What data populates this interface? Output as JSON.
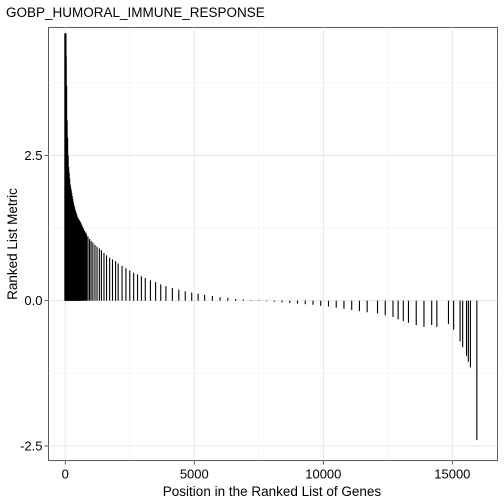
{
  "chart_data": {
    "type": "bar",
    "title": "GOBP_HUMORAL_IMMUNE_RESPONSE",
    "xlabel": "Position in the Ranked List of Genes",
    "ylabel": "Ranked List Metric",
    "xlim": [
      -650,
      16750
    ],
    "ylim": [
      -2.75,
      4.7
    ],
    "x_ticks": [
      0,
      5000,
      10000,
      15000
    ],
    "y_ticks": [
      -2.5,
      0.0,
      2.5
    ],
    "x_tick_labels": [
      "0",
      "5000",
      "10000",
      "15000"
    ],
    "y_tick_labels": [
      "-2.5",
      "0.0",
      "2.5"
    ],
    "grid": true,
    "legend": "none",
    "bars": [
      {
        "x": 5,
        "y": 4.6
      },
      {
        "x": 15,
        "y": 4.2
      },
      {
        "x": 30,
        "y": 3.7
      },
      {
        "x": 50,
        "y": 3.1
      },
      {
        "x": 70,
        "y": 2.8
      },
      {
        "x": 90,
        "y": 2.5
      },
      {
        "x": 110,
        "y": 2.3
      },
      {
        "x": 130,
        "y": 2.2
      },
      {
        "x": 150,
        "y": 2.1
      },
      {
        "x": 170,
        "y": 2.0
      },
      {
        "x": 190,
        "y": 1.95
      },
      {
        "x": 210,
        "y": 1.9
      },
      {
        "x": 230,
        "y": 1.85
      },
      {
        "x": 250,
        "y": 1.8
      },
      {
        "x": 270,
        "y": 1.75
      },
      {
        "x": 290,
        "y": 1.7
      },
      {
        "x": 310,
        "y": 1.65
      },
      {
        "x": 330,
        "y": 1.62
      },
      {
        "x": 350,
        "y": 1.58
      },
      {
        "x": 370,
        "y": 1.55
      },
      {
        "x": 390,
        "y": 1.52
      },
      {
        "x": 410,
        "y": 1.5
      },
      {
        "x": 430,
        "y": 1.47
      },
      {
        "x": 450,
        "y": 1.44
      },
      {
        "x": 475,
        "y": 1.42
      },
      {
        "x": 500,
        "y": 1.4
      },
      {
        "x": 530,
        "y": 1.38
      },
      {
        "x": 560,
        "y": 1.36
      },
      {
        "x": 590,
        "y": 1.33
      },
      {
        "x": 620,
        "y": 1.3
      },
      {
        "x": 650,
        "y": 1.27
      },
      {
        "x": 690,
        "y": 1.24
      },
      {
        "x": 730,
        "y": 1.2
      },
      {
        "x": 780,
        "y": 1.17
      },
      {
        "x": 830,
        "y": 1.13
      },
      {
        "x": 880,
        "y": 1.1
      },
      {
        "x": 940,
        "y": 1.06
      },
      {
        "x": 1000,
        "y": 1.03
      },
      {
        "x": 1070,
        "y": 1.0
      },
      {
        "x": 1150,
        "y": 0.96
      },
      {
        "x": 1230,
        "y": 0.93
      },
      {
        "x": 1320,
        "y": 0.9
      },
      {
        "x": 1400,
        "y": 0.87
      },
      {
        "x": 1500,
        "y": 0.82
      },
      {
        "x": 1600,
        "y": 0.78
      },
      {
        "x": 1720,
        "y": 0.74
      },
      {
        "x": 1830,
        "y": 0.71
      },
      {
        "x": 1950,
        "y": 0.68
      },
      {
        "x": 2050,
        "y": 0.64
      },
      {
        "x": 2200,
        "y": 0.6
      },
      {
        "x": 2350,
        "y": 0.56
      },
      {
        "x": 2500,
        "y": 0.52
      },
      {
        "x": 2650,
        "y": 0.48
      },
      {
        "x": 2800,
        "y": 0.45
      },
      {
        "x": 2950,
        "y": 0.42
      },
      {
        "x": 3100,
        "y": 0.39
      },
      {
        "x": 3300,
        "y": 0.35
      },
      {
        "x": 3500,
        "y": 0.32
      },
      {
        "x": 3700,
        "y": 0.28
      },
      {
        "x": 3900,
        "y": 0.25
      },
      {
        "x": 4150,
        "y": 0.22
      },
      {
        "x": 4400,
        "y": 0.19
      },
      {
        "x": 4650,
        "y": 0.16
      },
      {
        "x": 4900,
        "y": 0.14
      },
      {
        "x": 5150,
        "y": 0.12
      },
      {
        "x": 5400,
        "y": 0.1
      },
      {
        "x": 5700,
        "y": 0.08
      },
      {
        "x": 6000,
        "y": 0.06
      },
      {
        "x": 6300,
        "y": 0.05
      },
      {
        "x": 6600,
        "y": 0.03
      },
      {
        "x": 6900,
        "y": 0.02
      },
      {
        "x": 7200,
        "y": 0.01
      },
      {
        "x": 7500,
        "y": 0.005
      },
      {
        "x": 7800,
        "y": -0.005
      },
      {
        "x": 8100,
        "y": -0.02
      },
      {
        "x": 8400,
        "y": -0.03
      },
      {
        "x": 8700,
        "y": -0.04
      },
      {
        "x": 9000,
        "y": -0.05
      },
      {
        "x": 9300,
        "y": -0.06
      },
      {
        "x": 9600,
        "y": -0.07
      },
      {
        "x": 9900,
        "y": -0.09
      },
      {
        "x": 10200,
        "y": -0.1
      },
      {
        "x": 10500,
        "y": -0.12
      },
      {
        "x": 10800,
        "y": -0.14
      },
      {
        "x": 11100,
        "y": -0.16
      },
      {
        "x": 11400,
        "y": -0.18
      },
      {
        "x": 11700,
        "y": -0.2
      },
      {
        "x": 12100,
        "y": -0.22
      },
      {
        "x": 12400,
        "y": -0.25
      },
      {
        "x": 12700,
        "y": -0.28
      },
      {
        "x": 12900,
        "y": -0.32
      },
      {
        "x": 13100,
        "y": -0.35
      },
      {
        "x": 13300,
        "y": -0.38
      },
      {
        "x": 13600,
        "y": -0.42
      },
      {
        "x": 13900,
        "y": -0.45
      },
      {
        "x": 14200,
        "y": -0.42
      },
      {
        "x": 14400,
        "y": -0.45
      },
      {
        "x": 14850,
        "y": -0.4
      },
      {
        "x": 15050,
        "y": -0.5
      },
      {
        "x": 15300,
        "y": -0.7
      },
      {
        "x": 15400,
        "y": -0.8
      },
      {
        "x": 15550,
        "y": -0.95
      },
      {
        "x": 15620,
        "y": -1.05
      },
      {
        "x": 15700,
        "y": -1.15
      },
      {
        "x": 15950,
        "y": -2.4
      }
    ]
  }
}
